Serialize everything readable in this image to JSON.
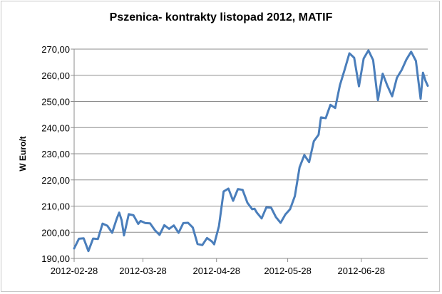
{
  "chart_data": {
    "type": "line",
    "title": "Pszenica- kontrakty listopad 2012, MATIF",
    "xlabel": "",
    "ylabel": "W Euro/t",
    "ylim": [
      190,
      270
    ],
    "y_ticks": [
      "190,00",
      "200,00",
      "210,00",
      "220,00",
      "230,00",
      "240,00",
      "250,00",
      "260,00",
      "270,00"
    ],
    "x_ticks": [
      "2012-02-28",
      "2012-03-28",
      "2012-04-28",
      "2012-05-28",
      "2012-06-28"
    ],
    "grid": true,
    "legend": "none",
    "line_color": "#4a7ebb",
    "series": [
      {
        "x": [
          "2012-02-28",
          "2012-03-01",
          "2012-03-03",
          "2012-03-05",
          "2012-03-07",
          "2012-03-09",
          "2012-03-11",
          "2012-03-13",
          "2012-03-15",
          "2012-03-17",
          "2012-03-18",
          "2012-03-19",
          "2012-03-20",
          "2012-03-22",
          "2012-03-24",
          "2012-03-26",
          "2012-03-27",
          "2012-03-29",
          "2012-03-31",
          "2012-04-02",
          "2012-04-04",
          "2012-04-06",
          "2012-04-08",
          "2012-04-10",
          "2012-04-12",
          "2012-04-14",
          "2012-04-16",
          "2012-04-18",
          "2012-04-20",
          "2012-04-22",
          "2012-04-24",
          "2012-04-26",
          "2012-04-27",
          "2012-04-29",
          "2012-05-01",
          "2012-05-03",
          "2012-05-05",
          "2012-05-07",
          "2012-05-09",
          "2012-05-11",
          "2012-05-13",
          "2012-05-14",
          "2012-05-15",
          "2012-05-17",
          "2012-05-19",
          "2012-05-21",
          "2012-05-23",
          "2012-05-25",
          "2012-05-27",
          "2012-05-29",
          "2012-05-31",
          "2012-06-02",
          "2012-06-04",
          "2012-06-06",
          "2012-06-08",
          "2012-06-10",
          "2012-06-11",
          "2012-06-13",
          "2012-06-15",
          "2012-06-17",
          "2012-06-19",
          "2012-06-21",
          "2012-06-23",
          "2012-06-25",
          "2012-06-27",
          "2012-06-29",
          "2012-07-01",
          "2012-07-03",
          "2012-07-05",
          "2012-07-07",
          "2012-07-09",
          "2012-07-11",
          "2012-07-13",
          "2012-07-15",
          "2012-07-17",
          "2012-07-19",
          "2012-07-21",
          "2012-07-23",
          "2012-07-24",
          "2012-07-25",
          "2012-07-26"
        ],
        "values": [
          193.8,
          197.5,
          197.7,
          192.8,
          197.6,
          197.4,
          203.3,
          202.5,
          199.8,
          205.3,
          207.5,
          204.6,
          198.8,
          206.9,
          206.5,
          203.2,
          204.3,
          203.5,
          203.4,
          200.8,
          199.0,
          202.7,
          201.3,
          202.6,
          199.8,
          203.5,
          203.6,
          201.8,
          195.5,
          195.1,
          197.8,
          196.5,
          195.4,
          202.3,
          215.6,
          216.7,
          212.0,
          216.5,
          216.2,
          211.3,
          208.8,
          209.0,
          207.5,
          205.3,
          209.5,
          209.4,
          205.8,
          203.6,
          206.8,
          208.8,
          213.8,
          224.8,
          229.5,
          226.8,
          234.8,
          237.3,
          243.9,
          243.6,
          248.7,
          247.5,
          256.2,
          262.2,
          268.4,
          266.7,
          255.8,
          266.4,
          269.5,
          265.8,
          250.5,
          260.6,
          256.0,
          252.0,
          259.0,
          262.0,
          266.0,
          269.0,
          265.5,
          251.0,
          261.0,
          258.0,
          256.0
        ]
      }
    ]
  }
}
